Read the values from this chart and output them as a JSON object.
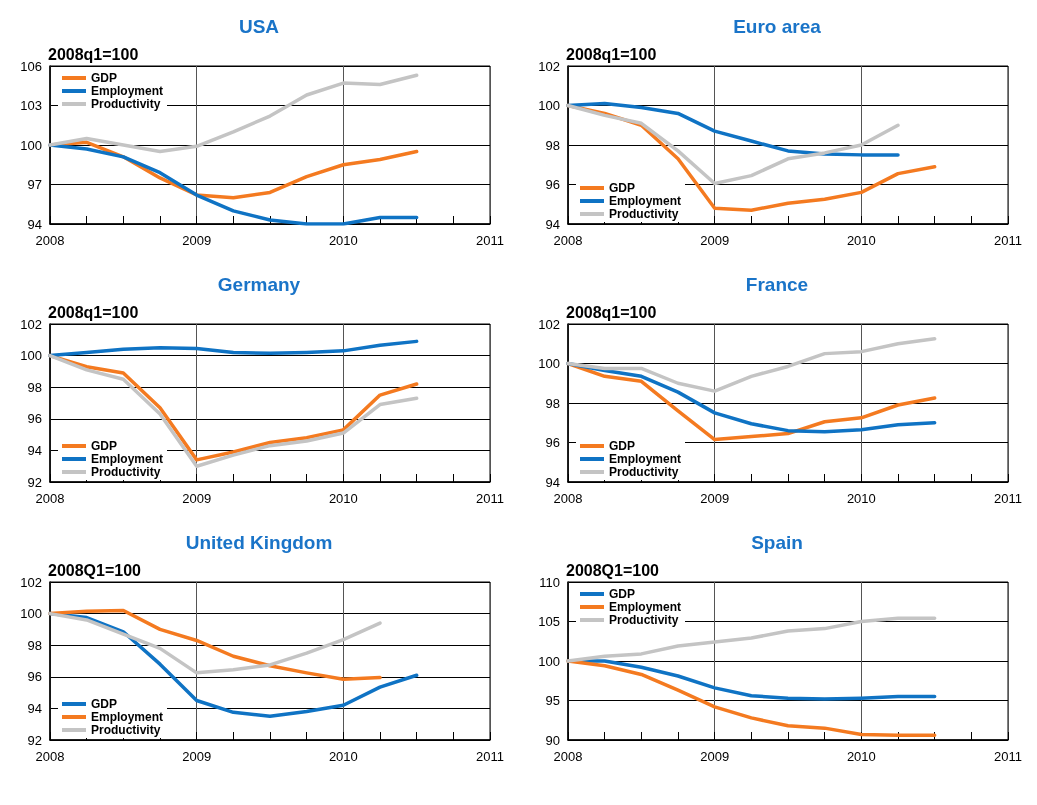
{
  "chart_data": [
    {
      "type": "line",
      "title": "USA",
      "ylabel": "2008q1=100",
      "x": [
        2008,
        2008.25,
        2008.5,
        2008.75,
        2009,
        2009.25,
        2009.5,
        2009.75,
        2010,
        2010.25,
        2010.5
      ],
      "xlim": [
        2008,
        2011
      ],
      "xticks": [
        2008,
        {
          "value": 2008.25,
          "label": null
        },
        {
          "value": 2008.5,
          "label": null
        },
        {
          "value": 2008.75,
          "label": null
        },
        2009,
        {
          "value": 2009.25,
          "label": null
        },
        {
          "value": 2009.5,
          "label": null
        },
        {
          "value": 2009.75,
          "label": null
        },
        2010,
        {
          "value": 2010.25,
          "label": null
        },
        {
          "value": 2010.5,
          "label": null
        },
        {
          "value": 2010.75,
          "label": null
        },
        2011
      ],
      "ylim": [
        94,
        106
      ],
      "yticks": [
        94,
        97,
        100,
        103,
        106
      ],
      "grid": true,
      "legend": "top left",
      "marker": "none",
      "series": [
        {
          "name": "GDP",
          "color": "#f47a20",
          "values": [
            100,
            100.2,
            99.1,
            97.5,
            96.2,
            96.0,
            96.4,
            97.6,
            98.5,
            98.9,
            99.5
          ]
        },
        {
          "name": "Employment",
          "color": "#0f73c4",
          "values": [
            100,
            99.7,
            99.1,
            97.9,
            96.2,
            95.0,
            94.3,
            94.0,
            94.0,
            94.5,
            94.5
          ]
        },
        {
          "name": "Productivity",
          "color": "#c4c4c4",
          "values": [
            100,
            100.5,
            100.0,
            99.5,
            99.9,
            101.0,
            102.2,
            103.8,
            104.7,
            104.6,
            105.3
          ]
        }
      ]
    },
    {
      "type": "line",
      "title": "Euro area",
      "ylabel": "2008q1=100",
      "x": [
        2008,
        2008.25,
        2008.5,
        2008.75,
        2009,
        2009.25,
        2009.5,
        2009.75,
        2010,
        2010.25,
        2010.5
      ],
      "xlim": [
        2008,
        2011
      ],
      "xticks": [
        2008,
        {
          "value": 2008.25,
          "label": null
        },
        {
          "value": 2008.5,
          "label": null
        },
        {
          "value": 2008.75,
          "label": null
        },
        2009,
        {
          "value": 2009.25,
          "label": null
        },
        {
          "value": 2009.5,
          "label": null
        },
        {
          "value": 2009.75,
          "label": null
        },
        2010,
        {
          "value": 2010.25,
          "label": null
        },
        {
          "value": 2010.5,
          "label": null
        },
        {
          "value": 2010.75,
          "label": null
        },
        2011
      ],
      "ylim": [
        94,
        102
      ],
      "yticks": [
        94,
        96,
        98,
        100,
        102
      ],
      "grid": true,
      "legend": "bottom left",
      "marker": "none",
      "series": [
        {
          "name": "GDP",
          "color": "#f47a20",
          "values": [
            100,
            99.6,
            99.0,
            97.3,
            94.8,
            94.7,
            95.05,
            95.25,
            95.6,
            96.55,
            96.9
          ]
        },
        {
          "name": "Employment",
          "color": "#0f73c4",
          "values": [
            100,
            100.1,
            99.9,
            99.6,
            98.7,
            98.2,
            97.7,
            97.55,
            97.5,
            97.5,
            null
          ]
        },
        {
          "name": "Productivity",
          "color": "#c4c4c4",
          "values": [
            100,
            99.5,
            99.1,
            97.7,
            96.05,
            96.45,
            97.3,
            97.6,
            98.0,
            99.0,
            null
          ]
        }
      ]
    },
    {
      "type": "line",
      "title": "Germany",
      "ylabel": "2008q1=100",
      "x": [
        2008,
        2008.25,
        2008.5,
        2008.75,
        2009,
        2009.25,
        2009.5,
        2009.75,
        2010,
        2010.25,
        2010.5
      ],
      "xlim": [
        2008,
        2011
      ],
      "xticks": [
        2008,
        {
          "value": 2008.25,
          "label": null
        },
        {
          "value": 2008.5,
          "label": null
        },
        {
          "value": 2008.75,
          "label": null
        },
        2009,
        {
          "value": 2009.25,
          "label": null
        },
        {
          "value": 2009.5,
          "label": null
        },
        {
          "value": 2009.75,
          "label": null
        },
        2010,
        {
          "value": 2010.25,
          "label": null
        },
        {
          "value": 2010.5,
          "label": null
        },
        {
          "value": 2010.75,
          "label": null
        },
        2011
      ],
      "ylim": [
        92,
        102
      ],
      "yticks": [
        92,
        94,
        96,
        98,
        100,
        102
      ],
      "grid": true,
      "legend": "bottom left",
      "marker": "none",
      "series": [
        {
          "name": "GDP",
          "color": "#f47a20",
          "values": [
            100,
            99.3,
            98.9,
            96.7,
            93.4,
            93.9,
            94.5,
            94.8,
            95.3,
            97.5,
            98.2
          ]
        },
        {
          "name": "Employment",
          "color": "#0f73c4",
          "values": [
            100,
            100.2,
            100.4,
            100.5,
            100.45,
            100.2,
            100.15,
            100.2,
            100.3,
            100.65,
            100.9
          ]
        },
        {
          "name": "Productivity",
          "color": "#c4c4c4",
          "values": [
            100,
            99.1,
            98.5,
            96.3,
            93.0,
            93.7,
            94.3,
            94.6,
            95.1,
            96.9,
            97.3
          ]
        }
      ]
    },
    {
      "type": "line",
      "title": "France",
      "ylabel": "2008q1=100",
      "x": [
        2008,
        2008.25,
        2008.5,
        2008.75,
        2009,
        2009.25,
        2009.5,
        2009.75,
        2010,
        2010.25,
        2010.5
      ],
      "xlim": [
        2008,
        2011
      ],
      "xticks": [
        2008,
        {
          "value": 2008.25,
          "label": null
        },
        {
          "value": 2008.5,
          "label": null
        },
        {
          "value": 2008.75,
          "label": null
        },
        2009,
        {
          "value": 2009.25,
          "label": null
        },
        {
          "value": 2009.5,
          "label": null
        },
        {
          "value": 2009.75,
          "label": null
        },
        2010,
        {
          "value": 2010.25,
          "label": null
        },
        {
          "value": 2010.5,
          "label": null
        },
        {
          "value": 2010.75,
          "label": null
        },
        2011
      ],
      "ylim": [
        94,
        102
      ],
      "yticks": [
        94,
        96,
        98,
        100,
        102
      ],
      "grid": true,
      "legend": "bottom left",
      "marker": "none",
      "series": [
        {
          "name": "GDP",
          "color": "#f47a20",
          "values": [
            100,
            99.35,
            99.1,
            97.6,
            96.15,
            96.3,
            96.45,
            97.05,
            97.25,
            97.9,
            98.25
          ]
        },
        {
          "name": "Employment",
          "color": "#0f73c4",
          "values": [
            100,
            99.65,
            99.35,
            98.55,
            97.5,
            96.95,
            96.6,
            96.55,
            96.65,
            96.9,
            97.0
          ]
        },
        {
          "name": "Productivity",
          "color": "#c4c4c4",
          "values": [
            100,
            99.75,
            99.75,
            99.0,
            98.6,
            99.35,
            99.85,
            100.5,
            100.6,
            101.0,
            101.25
          ]
        }
      ]
    },
    {
      "type": "line",
      "title": "United Kingdom",
      "ylabel": "2008Q1=100",
      "x": [
        2008,
        2008.25,
        2008.5,
        2008.75,
        2009,
        2009.25,
        2009.5,
        2009.75,
        2010,
        2010.25,
        2010.5
      ],
      "xlim": [
        2008,
        2011
      ],
      "xticks": [
        2008,
        {
          "value": 2008.25,
          "label": null
        },
        {
          "value": 2008.5,
          "label": null
        },
        {
          "value": 2008.75,
          "label": null
        },
        2009,
        {
          "value": 2009.25,
          "label": null
        },
        {
          "value": 2009.5,
          "label": null
        },
        {
          "value": 2009.75,
          "label": null
        },
        2010,
        {
          "value": 2010.25,
          "label": null
        },
        {
          "value": 2010.5,
          "label": null
        },
        {
          "value": 2010.75,
          "label": null
        },
        2011
      ],
      "ylim": [
        92,
        102
      ],
      "yticks": [
        92,
        94,
        96,
        98,
        100,
        102
      ],
      "grid": true,
      "legend": "bottom left",
      "marker": "none",
      "series": [
        {
          "name": "GDP",
          "color": "#0f73c4",
          "values": [
            100,
            99.75,
            98.85,
            96.8,
            94.5,
            93.75,
            93.5,
            93.8,
            94.2,
            95.35,
            96.1
          ]
        },
        {
          "name": "Employment",
          "color": "#f47a20",
          "values": [
            100,
            100.15,
            100.2,
            99.0,
            98.3,
            97.3,
            96.7,
            96.25,
            95.85,
            95.95,
            null
          ]
        },
        {
          "name": "Productivity",
          "color": "#c4c4c4",
          "values": [
            100,
            99.6,
            98.7,
            97.8,
            96.25,
            96.45,
            96.75,
            97.5,
            98.35,
            99.4,
            null
          ]
        }
      ]
    },
    {
      "type": "line",
      "title": "Spain",
      "ylabel": "2008Q1=100",
      "x": [
        2008,
        2008.25,
        2008.5,
        2008.75,
        2009,
        2009.25,
        2009.5,
        2009.75,
        2010,
        2010.25,
        2010.5
      ],
      "xlim": [
        2008,
        2011
      ],
      "xticks": [
        2008,
        {
          "value": 2008.25,
          "label": null
        },
        {
          "value": 2008.5,
          "label": null
        },
        {
          "value": 2008.75,
          "label": null
        },
        2009,
        {
          "value": 2009.25,
          "label": null
        },
        {
          "value": 2009.5,
          "label": null
        },
        {
          "value": 2009.75,
          "label": null
        },
        2010,
        {
          "value": 2010.25,
          "label": null
        },
        {
          "value": 2010.5,
          "label": null
        },
        {
          "value": 2010.75,
          "label": null
        },
        2011
      ],
      "ylim": [
        90,
        110
      ],
      "yticks": [
        90,
        95,
        100,
        105,
        110
      ],
      "grid": true,
      "legend": "top left",
      "marker": "none",
      "series": [
        {
          "name": "GDP",
          "color": "#0f73c4",
          "values": [
            100,
            100.0,
            99.2,
            98.1,
            96.6,
            95.6,
            95.3,
            95.2,
            95.3,
            95.5,
            95.5
          ]
        },
        {
          "name": "Employment",
          "color": "#f47a20",
          "values": [
            100,
            99.4,
            98.3,
            96.3,
            94.2,
            92.8,
            91.8,
            91.5,
            90.7,
            90.6,
            90.6
          ]
        },
        {
          "name": "Productivity",
          "color": "#c4c4c4",
          "values": [
            100,
            100.6,
            100.9,
            101.9,
            102.4,
            102.9,
            103.8,
            104.1,
            105.0,
            105.4,
            105.4
          ]
        }
      ]
    }
  ]
}
